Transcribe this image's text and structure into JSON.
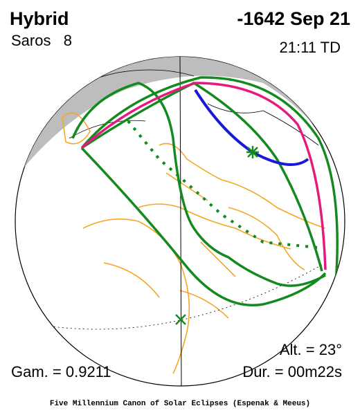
{
  "header": {
    "type": "Hybrid",
    "saros": "Saros   8",
    "date": "-1642 Sep 21",
    "time": "21:11 TD"
  },
  "stats": {
    "altitude": "Alt. = 23°",
    "gamma": "Gam. = 0.9211",
    "duration": "Dur. = 00m22s"
  },
  "footer": "Five Millennium Canon of Solar Eclipses (Espenak & Meeus)"
}
